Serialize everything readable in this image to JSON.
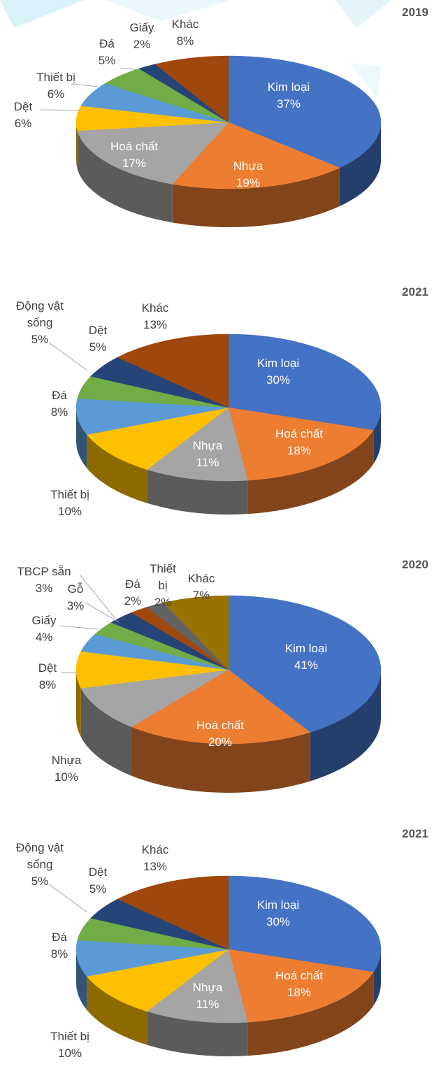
{
  "chart_data": [
    {
      "type": "pie",
      "title": "2019",
      "categories": [
        "Kim loại",
        "Nhựa",
        "Hoá chất",
        "Dệt",
        "Thiết bị",
        "Đá",
        "Giấy",
        "Khác"
      ],
      "values": [
        37,
        19,
        17,
        6,
        6,
        5,
        2,
        8
      ],
      "value_labels": [
        "37%",
        "19%",
        "17%",
        "6%",
        "6%",
        "5%",
        "2%",
        "8%"
      ],
      "colors": [
        "#4472c4",
        "#ed7d31",
        "#a5a5a5",
        "#ffc000",
        "#5b9bd5",
        "#70ad47",
        "#264478",
        "#9e480e"
      ]
    },
    {
      "type": "pie",
      "title": "2021",
      "categories": [
        "Kim loại",
        "Hoá chất",
        "Nhựa",
        "Thiết bị",
        "Đá",
        "Động vật sống",
        "Dệt",
        "Khác"
      ],
      "values": [
        30,
        18,
        11,
        10,
        8,
        5,
        5,
        13
      ],
      "value_labels": [
        "30%",
        "18%",
        "11%",
        "10%",
        "8%",
        "5%",
        "5%",
        "13%"
      ],
      "colors": [
        "#4472c4",
        "#ed7d31",
        "#a5a5a5",
        "#ffc000",
        "#5b9bd5",
        "#70ad47",
        "#264478",
        "#9e480e"
      ]
    },
    {
      "type": "pie",
      "title": "2020",
      "categories": [
        "Kim loại",
        "Hoá chất",
        "Nhựa",
        "Dệt",
        "Giấy",
        "Gỗ",
        "TBCP sẵn",
        "Đá",
        "Thiết bị",
        "Khác"
      ],
      "values": [
        41,
        20,
        10,
        8,
        4,
        3,
        3,
        2,
        2,
        7
      ],
      "value_labels": [
        "41%",
        "20%",
        "10%",
        "8%",
        "4%",
        "3%",
        "3%",
        "2%",
        "2%",
        "7%"
      ],
      "colors": [
        "#4472c4",
        "#ed7d31",
        "#a5a5a5",
        "#ffc000",
        "#5b9bd5",
        "#70ad47",
        "#264478",
        "#9e480e",
        "#636363",
        "#997300"
      ]
    },
    {
      "type": "pie",
      "title": "2021",
      "categories": [
        "Kim loại",
        "Hoá chất",
        "Nhựa",
        "Thiết bị",
        "Đá",
        "Động vật sống",
        "Dệt",
        "Khác"
      ],
      "values": [
        30,
        18,
        11,
        10,
        8,
        5,
        5,
        13
      ],
      "value_labels": [
        "30%",
        "18%",
        "11%",
        "10%",
        "8%",
        "5%",
        "5%",
        "13%"
      ],
      "colors": [
        "#4472c4",
        "#ed7d31",
        "#a5a5a5",
        "#ffc000",
        "#5b9bd5",
        "#70ad47",
        "#264478",
        "#9e480e"
      ]
    }
  ]
}
